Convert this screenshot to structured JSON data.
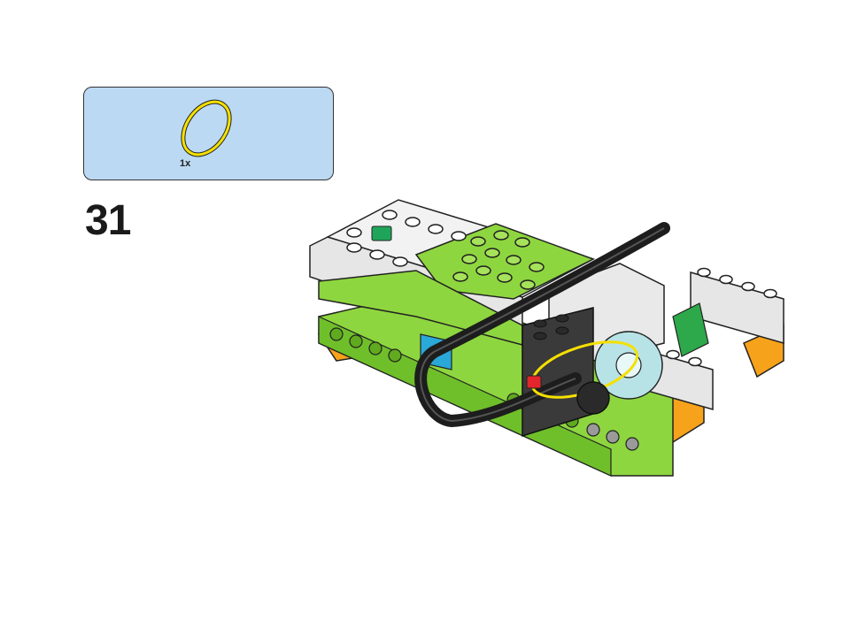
{
  "parts_callout": {
    "items": [
      {
        "name": "yellow-belt",
        "quantity": "1x",
        "color": "#f5e000"
      }
    ]
  },
  "step": {
    "number": "31"
  },
  "colors": {
    "callout_bg": "#bcd9f3",
    "lime": "#8ed63f",
    "lime_dark": "#5faa1e",
    "white_brick": "#f2f2f2",
    "dark_grey": "#3a3a3a",
    "orange": "#f7a21b",
    "azure": "#2aa8d8",
    "trans_clear": "#b8e3e6",
    "red": "#e3262b",
    "yellow": "#f5e000"
  }
}
